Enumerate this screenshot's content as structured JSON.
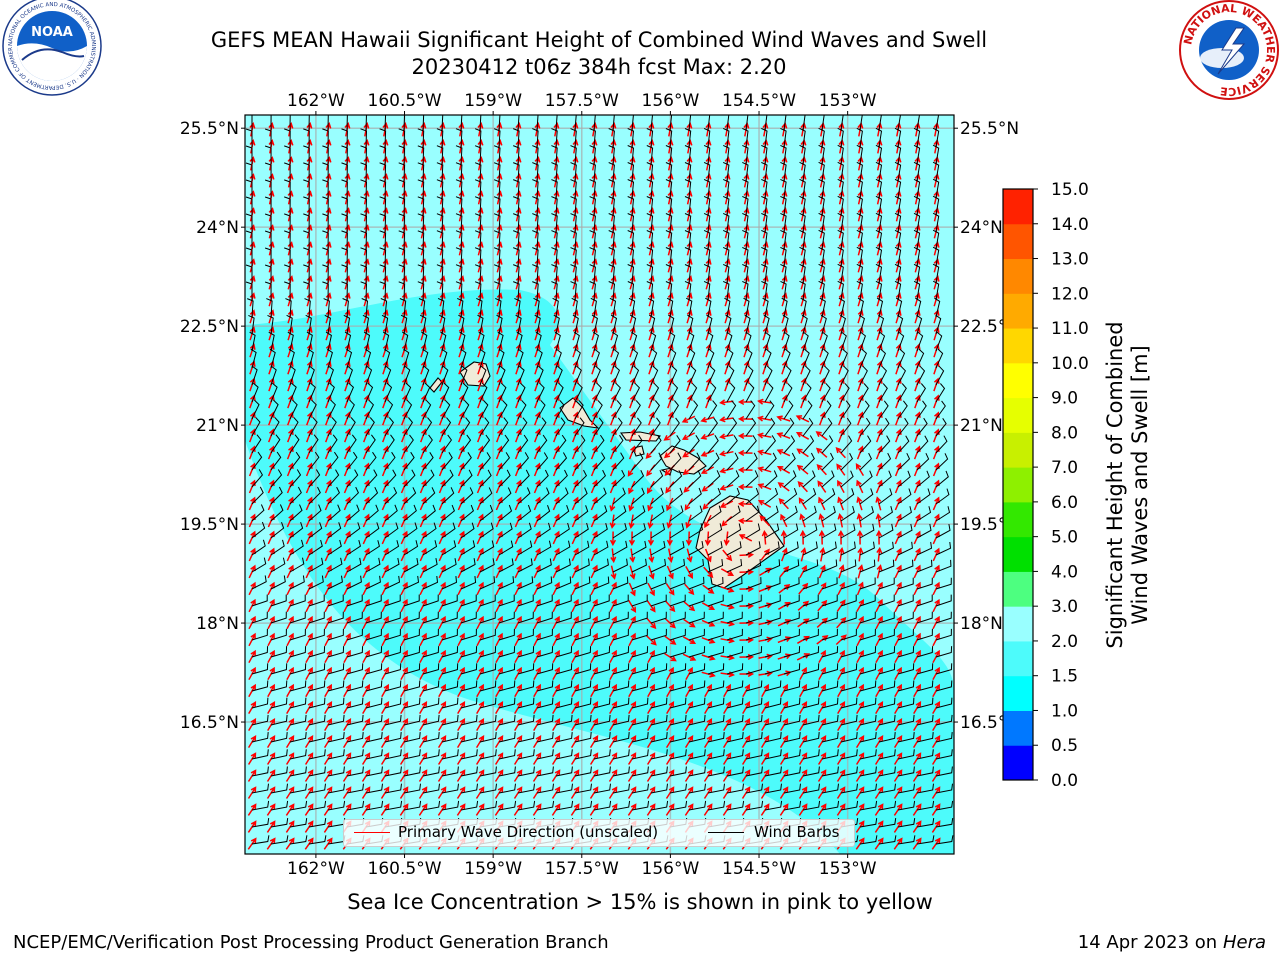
{
  "title": {
    "line1": "GEFS MEAN Hawaii Significant Height of Combined Wind Waves and Swell",
    "line2": "20230412 t06z 384h fcst   Max: 2.20"
  },
  "map": {
    "lon_range": [
      -163.2,
      -151.2
    ],
    "lat_range": [
      14.5,
      25.7
    ],
    "lon_ticks": [
      "162°W",
      "160.5°W",
      "159°W",
      "157.5°W",
      "156°W",
      "154.5°W",
      "153°W"
    ],
    "lat_ticks": [
      "25.5°N",
      "24°N",
      "22.5°N",
      "21°N",
      "19.5°N",
      "18°N",
      "16.5°N"
    ],
    "right_lat_ticks": [
      "25.5°N",
      "24°N",
      "22.5°",
      "21°N",
      "19.5°",
      "18°N",
      "16.5°"
    ],
    "ocean_color": "#99ffff",
    "lower_band_color": "#4dfbfb",
    "land_color": "#f0ebd8"
  },
  "legend": {
    "wave_label": "Primary Wave Direction (unscaled)",
    "barb_label": "Wind Barbs",
    "wave_color": "#ff0000",
    "barb_color": "#000000"
  },
  "colorbar": {
    "label_line1": "Significant Height of Combined",
    "label_line2": "Wind Waves and Swell [m]",
    "tick_labels": [
      "0.0",
      "0.5",
      "1.0",
      "1.5",
      "2.0",
      "3.0",
      "4.0",
      "5.0",
      "6.0",
      "7.0",
      "8.0",
      "9.0",
      "10.0",
      "11.0",
      "12.0",
      "13.0",
      "14.0",
      "15.0"
    ],
    "colors": [
      "#0000ff",
      "#0078ff",
      "#00ffff",
      "#4dfbfb",
      "#99ffff",
      "#4dff80",
      "#00e000",
      "#33e800",
      "#8ef000",
      "#c8f000",
      "#e6ff00",
      "#ffff00",
      "#ffd700",
      "#ffaa00",
      "#ff8800",
      "#ff5500",
      "#ff2200",
      "#ff0000"
    ]
  },
  "caption": "Sea Ice Concentration > 15% is shown in pink to yellow",
  "footer": {
    "left": "NCEP/EMC/Verification Post Processing Product Generation Branch",
    "date": "14 Apr 2023 on",
    "host": "Hera"
  },
  "logos": {
    "noaa_text": "NOAA",
    "noaa_ring_text": "NATIONAL OCEANIC AND ATMOSPHERIC ADMINISTRATION · U.S. DEPARTMENT OF COMMERCE",
    "nws_ring_text": "NATIONAL WEATHER SERVICE"
  }
}
